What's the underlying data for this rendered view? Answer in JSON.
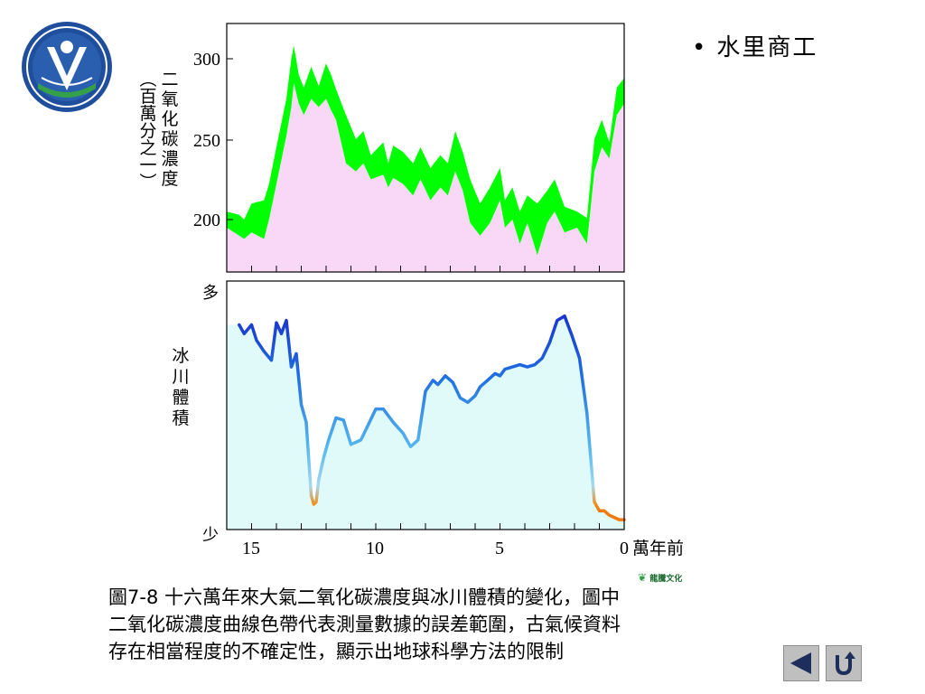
{
  "slide": {
    "bullet": "水里商工",
    "caption_lines": [
      "圖7-8  十六萬年來大氣二氧化碳濃度與冰川體積的變化，圖中",
      "二氧化碳濃度曲線色帶代表測量數據的誤差範圍，古氣候資料",
      "存在相當程度的不確定性，顯示出地球科學方法的限制"
    ],
    "publisher": "龍騰文化",
    "colors": {
      "co2_band": "#00ff00",
      "co2_fill": "#f9d8f7",
      "ice_fill": "#e0fafa",
      "ice_line_high": "#1a3bd6",
      "ice_line_low": "#f08a1a"
    }
  },
  "nav": {
    "back_icon": "triangle-left-icon",
    "return_icon": "u-turn-icon"
  },
  "chart_data": [
    {
      "type": "area",
      "ylabel": "二氧化碳濃度",
      "ylabel_sub": "（百萬分之一）",
      "yticks": [
        "300",
        "250",
        "200"
      ],
      "ylim": [
        168,
        322
      ],
      "xlim": [
        16,
        0
      ],
      "series_upper": {
        "x": [
          16,
          15.5,
          15.3,
          15,
          14.5,
          14.3,
          14,
          13.6,
          13.4,
          13.3,
          13.1,
          12.9,
          12.6,
          12.3,
          12,
          11.8,
          11.6,
          11.2,
          10.8,
          10.5,
          10.2,
          9.7,
          9.5,
          9.3,
          8.9,
          8.5,
          8.2,
          7.8,
          7.4,
          7.1,
          6.8,
          6.5,
          6.2,
          5.8,
          5.4,
          5,
          4.8,
          4.5,
          4.2,
          3.9,
          3.5,
          3.1,
          2.8,
          2.4,
          1.9,
          1.5,
          1.2,
          0.9,
          0.6,
          0.3,
          0
        ],
        "y": [
          205,
          203,
          200,
          210,
          212,
          222,
          245,
          275,
          300,
          308,
          290,
          282,
          295,
          283,
          297,
          290,
          281,
          265,
          250,
          255,
          240,
          248,
          235,
          246,
          242,
          235,
          245,
          232,
          240,
          235,
          255,
          242,
          225,
          210,
          220,
          232,
          212,
          220,
          205,
          215,
          210,
          218,
          225,
          208,
          205,
          201,
          250,
          262,
          248,
          282,
          288
        ]
      },
      "series_lower": {
        "x": [
          16,
          15.5,
          15.3,
          15,
          14.5,
          14.3,
          14,
          13.6,
          13.4,
          13.3,
          13.1,
          12.9,
          12.6,
          12.3,
          12,
          11.8,
          11.6,
          11.2,
          10.8,
          10.5,
          10.2,
          9.7,
          9.5,
          9.3,
          8.9,
          8.5,
          8.2,
          7.8,
          7.4,
          7.1,
          6.8,
          6.5,
          6.2,
          5.8,
          5.4,
          5,
          4.8,
          4.5,
          4.2,
          3.9,
          3.5,
          3.1,
          2.8,
          2.4,
          1.9,
          1.5,
          1.2,
          0.9,
          0.6,
          0.3,
          0
        ],
        "y": [
          195,
          190,
          188,
          192,
          188,
          200,
          222,
          252,
          270,
          285,
          272,
          265,
          275,
          270,
          275,
          268,
          262,
          235,
          230,
          235,
          225,
          228,
          220,
          226,
          222,
          215,
          225,
          212,
          220,
          215,
          230,
          218,
          198,
          190,
          198,
          212,
          195,
          200,
          185,
          198,
          178,
          198,
          205,
          192,
          195,
          185,
          230,
          245,
          238,
          265,
          272
        ]
      }
    },
    {
      "type": "area",
      "ylabel": "冰川體積",
      "ytick_top": "多",
      "ytick_bottom": "少",
      "xlabel": "萬年前",
      "xticks": [
        "15",
        "10",
        "5",
        "0"
      ],
      "xlim": [
        16,
        0
      ],
      "ylim": [
        0,
        100
      ],
      "series": {
        "x": [
          15.5,
          15.3,
          15.0,
          14.8,
          14.5,
          14.2,
          14.0,
          13.8,
          13.6,
          13.4,
          13.2,
          13.0,
          12.8,
          12.6,
          12.5,
          12.4,
          12.3,
          12.1,
          11.9,
          11.6,
          11.3,
          11.0,
          10.8,
          10.6,
          10.3,
          10.0,
          9.7,
          9.3,
          8.9,
          8.6,
          8.3,
          8.0,
          7.7,
          7.5,
          7.2,
          6.9,
          6.6,
          6.3,
          6.0,
          5.8,
          5.5,
          5.2,
          5.0,
          4.8,
          4.5,
          4.2,
          3.9,
          3.6,
          3.3,
          3.0,
          2.7,
          2.4,
          2.1,
          1.8,
          1.5,
          1.2,
          1.0,
          0.8,
          0.7,
          0.6,
          0.4,
          0.2,
          0
        ],
        "y": [
          90,
          86,
          90,
          83,
          78,
          74,
          91,
          86,
          92,
          71,
          77,
          54,
          46,
          13,
          9,
          10,
          20,
          30,
          38,
          48,
          47,
          36,
          37,
          38,
          45,
          52,
          52,
          46,
          41,
          35,
          38,
          60,
          65,
          63,
          67,
          64,
          57,
          55,
          58,
          62,
          65,
          68,
          67,
          70,
          71,
          72,
          71,
          72,
          75,
          82,
          92,
          94,
          85,
          75,
          50,
          10,
          6,
          6,
          5,
          4,
          3,
          2,
          2
        ]
      }
    }
  ]
}
